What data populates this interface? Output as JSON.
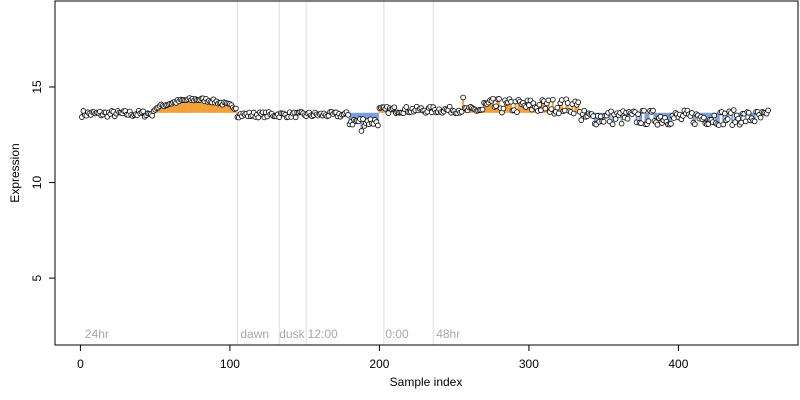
{
  "chart_data": {
    "type": "scatter",
    "xlabel": "Sample index",
    "ylabel": "Expression",
    "xlim": [
      -17,
      480
    ],
    "ylim": [
      1.5,
      19.5
    ],
    "x_ticks": [
      0,
      100,
      200,
      300,
      400
    ],
    "y_ticks": [
      5,
      10,
      15
    ],
    "grid": false,
    "baseline": 13.65,
    "colors": {
      "above": "#f3a13a",
      "below": "#7d9fdc",
      "point_fill": "#ffffff",
      "point_stroke": "#000000",
      "vline": "#dddddd",
      "annotation": "#a8a8a8"
    },
    "vlines": [
      105,
      133,
      151,
      203,
      236
    ],
    "annotations": [
      {
        "text": "24hr",
        "x": 3
      },
      {
        "text": "dawn",
        "x": 107
      },
      {
        "text": "dusk",
        "x": 133
      },
      {
        "text": "12:00",
        "x": 152
      },
      {
        "text": "0:00",
        "x": 204
      },
      {
        "text": "48hr",
        "x": 238
      }
    ],
    "segments": [
      {
        "x": [
          0,
          50
        ],
        "base": 13.6,
        "trend": "flat"
      },
      {
        "x": [
          50,
          105
        ],
        "peak": 14.3,
        "trend": "hump"
      },
      {
        "x": [
          105,
          180
        ],
        "base": 13.55,
        "trend": "flat"
      },
      {
        "x": [
          180,
          200
        ],
        "base": 13.2,
        "trend": "dip"
      },
      {
        "x": [
          200,
          270
        ],
        "base": 13.8,
        "trend": "flat"
      },
      {
        "x": [
          270,
          335
        ],
        "base": 14.0,
        "trend": "elevated"
      },
      {
        "x": [
          335,
          460
        ],
        "base": 13.4,
        "trend": "noisy"
      }
    ],
    "approx_values": {
      "n_points": 460,
      "max_point": {
        "x": 256,
        "y": 14.45
      },
      "min_point": {
        "x": 188,
        "y": 12.7
      }
    }
  }
}
